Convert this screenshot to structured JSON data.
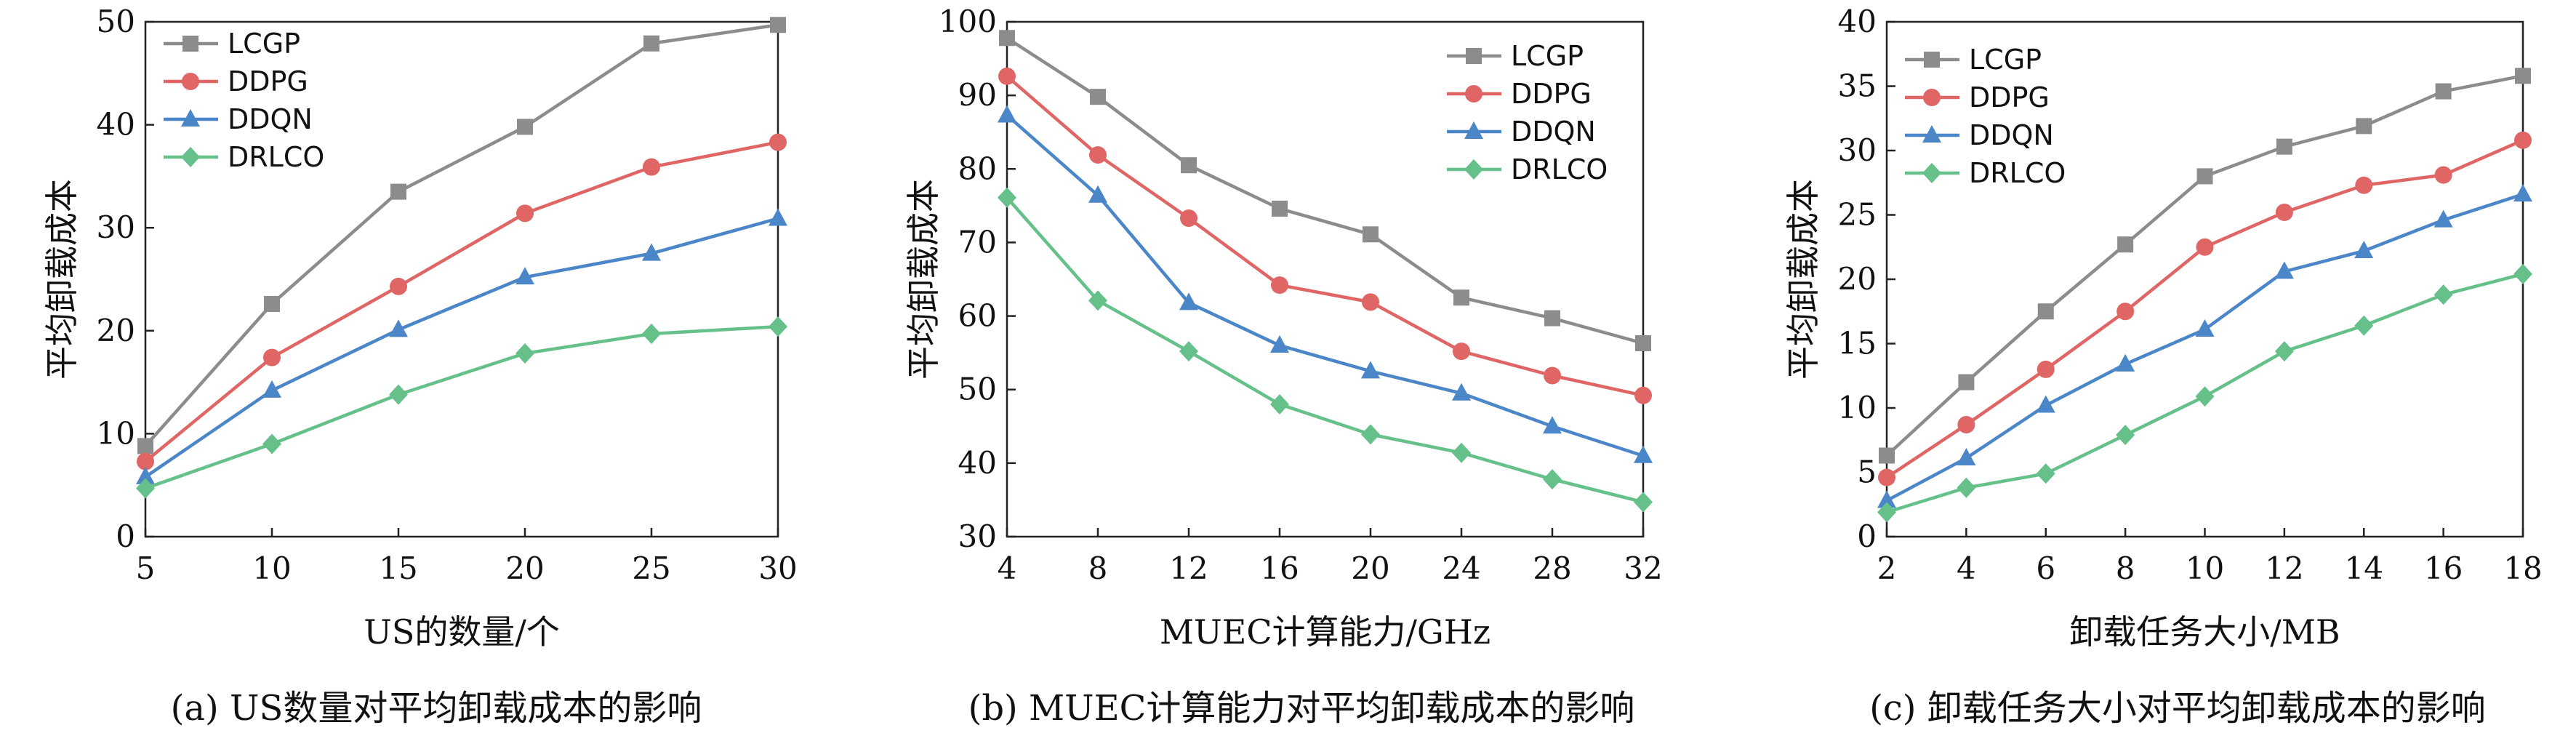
{
  "colors": {
    "LCGP": "#8c8c8c",
    "DDPG": "#e06666",
    "DDQN": "#4a86c8",
    "DRLCO": "#66c08a"
  },
  "markers": {
    "LCGP": "square",
    "DDPG": "circle",
    "DDQN": "triangle",
    "DRLCO": "diamond"
  },
  "chart_data": [
    {
      "type": "line",
      "caption": "(a) US数量对平均卸载成本的影响",
      "xlabel": "US的数量/个",
      "ylabel": "平均卸载成本",
      "x": [
        5,
        10,
        15,
        20,
        25,
        30
      ],
      "xlim": [
        5,
        30
      ],
      "ylim": [
        0,
        50
      ],
      "xticks": [
        5,
        10,
        15,
        20,
        25,
        30
      ],
      "yticks": [
        0,
        10,
        20,
        30,
        40,
        50
      ],
      "legend_position": "top-left",
      "series": [
        {
          "name": "LCGP",
          "values": [
            8.8,
            22.6,
            33.5,
            39.8,
            47.9,
            49.7
          ]
        },
        {
          "name": "DDPG",
          "values": [
            7.3,
            17.4,
            24.3,
            31.4,
            35.9,
            38.3
          ]
        },
        {
          "name": "DDQN",
          "values": [
            5.8,
            14.2,
            20.1,
            25.2,
            27.5,
            30.9
          ]
        },
        {
          "name": "DRLCO",
          "values": [
            4.7,
            9.0,
            13.8,
            17.8,
            19.7,
            20.4
          ]
        }
      ]
    },
    {
      "type": "line",
      "caption": "(b) MUEC计算能力对平均卸载成本的影响",
      "xlabel": "MUEC计算能力/GHz",
      "ylabel": "平均卸载成本",
      "x": [
        4,
        8,
        12,
        16,
        20,
        24,
        28,
        32
      ],
      "xlim": [
        4,
        32
      ],
      "ylim": [
        30,
        100
      ],
      "xticks": [
        4,
        8,
        12,
        16,
        20,
        24,
        28,
        32
      ],
      "yticks": [
        30,
        40,
        50,
        60,
        70,
        80,
        90,
        100
      ],
      "legend_position": "top-right",
      "series": [
        {
          "name": "LCGP",
          "values": [
            97.8,
            89.8,
            80.5,
            74.6,
            71.1,
            62.5,
            59.7,
            56.3
          ]
        },
        {
          "name": "DDPG",
          "values": [
            92.6,
            81.9,
            73.3,
            64.2,
            61.9,
            55.2,
            51.9,
            49.2
          ]
        },
        {
          "name": "DDQN",
          "values": [
            87.3,
            76.4,
            61.8,
            56.0,
            52.5,
            49.5,
            45.0,
            41.0
          ]
        },
        {
          "name": "DRLCO",
          "values": [
            76.1,
            62.1,
            55.2,
            48.0,
            43.9,
            41.4,
            37.8,
            34.7
          ]
        }
      ]
    },
    {
      "type": "line",
      "caption": "(c) 卸载任务大小对平均卸载成本的影响",
      "xlabel": "卸载任务大小/MB",
      "ylabel": "平均卸载成本",
      "x": [
        2,
        4,
        6,
        8,
        10,
        12,
        14,
        16,
        18
      ],
      "xlim": [
        2,
        18
      ],
      "ylim": [
        0,
        40
      ],
      "xticks": [
        2,
        4,
        6,
        8,
        10,
        12,
        14,
        16,
        18
      ],
      "yticks": [
        0,
        5,
        10,
        15,
        20,
        25,
        30,
        35,
        40
      ],
      "legend_position": "top-left",
      "series": [
        {
          "name": "LCGP",
          "values": [
            6.3,
            12.0,
            17.5,
            22.7,
            28.0,
            30.3,
            31.9,
            34.6,
            35.8
          ]
        },
        {
          "name": "DDPG",
          "values": [
            4.6,
            8.7,
            13.0,
            17.5,
            22.5,
            25.2,
            27.3,
            28.1,
            30.8
          ]
        },
        {
          "name": "DDQN",
          "values": [
            2.8,
            6.1,
            10.2,
            13.4,
            16.1,
            20.6,
            22.2,
            24.6,
            26.6
          ]
        },
        {
          "name": "DRLCO",
          "values": [
            1.9,
            3.8,
            4.9,
            7.9,
            10.9,
            14.4,
            16.4,
            18.8,
            20.4
          ]
        }
      ]
    }
  ]
}
